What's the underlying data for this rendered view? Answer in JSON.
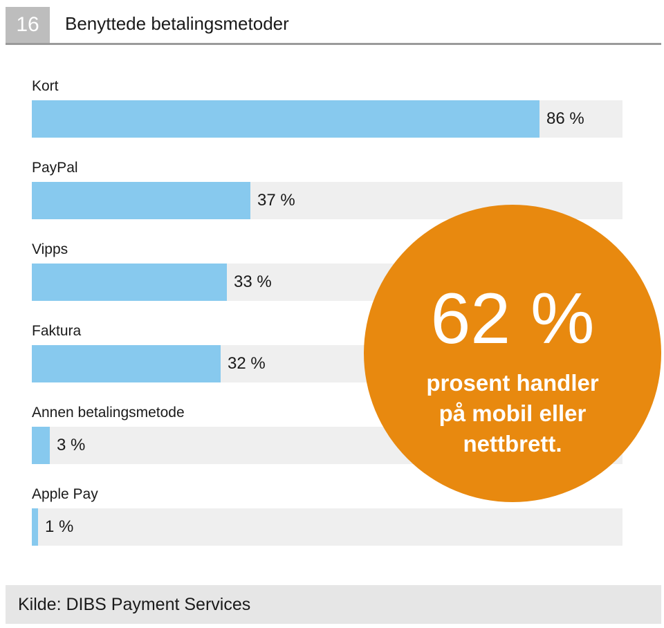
{
  "header": {
    "figure_number": "16",
    "title": "Benyttede betalingsmetoder"
  },
  "chart_data": {
    "type": "bar",
    "orientation": "horizontal",
    "title": "Benyttede betalingsmetoder",
    "categories": [
      "Kort",
      "PayPal",
      "Vipps",
      "Faktura",
      "Annen betalingsmetode",
      "Apple Pay"
    ],
    "values": [
      86,
      37,
      33,
      32,
      3,
      1
    ],
    "value_labels": [
      "86 %",
      "37 %",
      "33 %",
      "32 %",
      "3 %",
      "1 %"
    ],
    "xlim": [
      0,
      100
    ],
    "unit": "%",
    "grid": false,
    "legend": "none",
    "bar_color": "#87c9ee",
    "track_color": "#efefef"
  },
  "callout": {
    "value": "62 %",
    "text": "prosent handler på mobil eller nettbrett.",
    "color": "#e8890f"
  },
  "footer": {
    "source": "Kilde: DIBS Payment Services"
  }
}
